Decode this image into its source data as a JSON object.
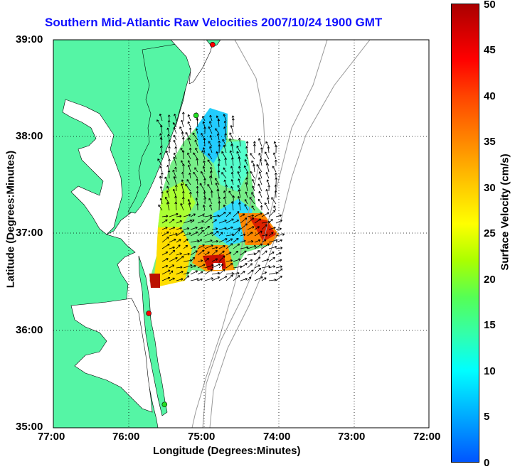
{
  "title": "Southern Mid-Atlantic Raw Velocities 2007/10/24 1900 GMT",
  "xlabel": "Longitude (Degrees:Minutes)",
  "ylabel": "Latitude (Degrees:Minutes)",
  "xticks": [
    "77:00",
    "76:00",
    "75:00",
    "74:00",
    "73:00",
    "72:00"
  ],
  "yticks": [
    "39:00",
    "38:00",
    "37:00",
    "36:00",
    "35:00"
  ],
  "colorbar": {
    "label": "Surface Velocity (cm/s)",
    "ticks": [
      "50",
      "45",
      "40",
      "35",
      "30",
      "25",
      "20",
      "15",
      "10",
      "5",
      "0"
    ]
  },
  "colors": {
    "land": "#55f5a5",
    "title": "#1010ff",
    "station_red": "#ff0000",
    "station_green": "#22dd22"
  },
  "map_extent": {
    "lon": [
      -77,
      -72
    ],
    "lat": [
      35,
      39
    ]
  },
  "stations": [
    {
      "color": "red",
      "lon": -74.88,
      "lat": 38.95
    },
    {
      "color": "green",
      "lon": -75.1,
      "lat": 38.22
    },
    {
      "color": "red",
      "lon": -75.73,
      "lat": 36.18
    },
    {
      "color": "green",
      "lon": -75.52,
      "lat": 35.24
    }
  ]
}
